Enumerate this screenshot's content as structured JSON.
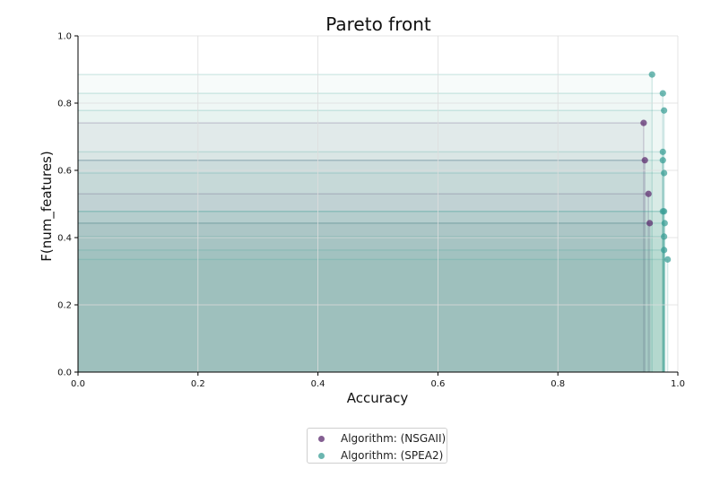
{
  "chart_data": {
    "type": "scatter",
    "title": "Pareto front",
    "xlabel": "Accuracy",
    "ylabel": "F(num_features)",
    "xlim": [
      0.0,
      1.0
    ],
    "ylim": [
      0.0,
      1.0
    ],
    "xticks": [
      "0.0",
      "0.2",
      "0.4",
      "0.6",
      "0.8",
      "1.0"
    ],
    "yticks": [
      "0.0",
      "0.2",
      "0.4",
      "0.6",
      "0.8",
      "1.0"
    ],
    "grid": true,
    "legend_position": "bottom-center",
    "series": [
      {
        "name": "Algorithm: (NSGAII)",
        "color": "#5b2a6e",
        "points": [
          {
            "x": 0.943,
            "y": 0.741
          },
          {
            "x": 0.945,
            "y": 0.63
          },
          {
            "x": 0.951,
            "y": 0.53
          },
          {
            "x": 0.953,
            "y": 0.443
          }
        ]
      },
      {
        "name": "Algorithm: (SPEA2)",
        "color": "#3a9e96",
        "points": [
          {
            "x": 0.957,
            "y": 0.885
          },
          {
            "x": 0.975,
            "y": 0.829
          },
          {
            "x": 0.977,
            "y": 0.778
          },
          {
            "x": 0.975,
            "y": 0.655
          },
          {
            "x": 0.975,
            "y": 0.63
          },
          {
            "x": 0.977,
            "y": 0.592
          },
          {
            "x": 0.977,
            "y": 0.478
          },
          {
            "x": 0.975,
            "y": 0.478
          },
          {
            "x": 0.978,
            "y": 0.443
          },
          {
            "x": 0.977,
            "y": 0.403
          },
          {
            "x": 0.977,
            "y": 0.363
          },
          {
            "x": 0.983,
            "y": 0.335
          }
        ]
      }
    ]
  }
}
